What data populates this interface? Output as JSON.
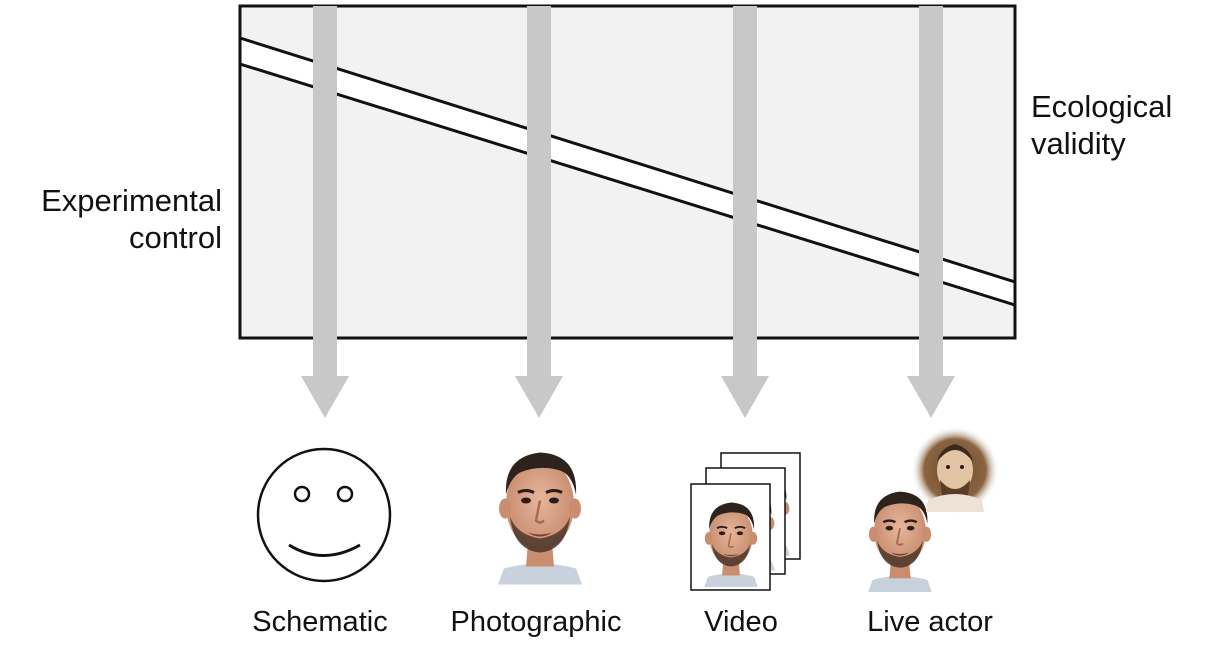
{
  "axis_labels": {
    "left": [
      "Experimental",
      "control"
    ],
    "right": [
      "Ecological",
      "validity"
    ]
  },
  "stimuli": [
    {
      "label": "Schematic",
      "icon": "smiley-face-icon"
    },
    {
      "label": "Photographic",
      "icon": "face-photo-icon"
    },
    {
      "label": "Video",
      "icon": "video-frames-icon"
    },
    {
      "label": "Live actor",
      "icon": "live-actor-icon"
    }
  ],
  "colors": {
    "panel_fill": "#f2f2f2",
    "arrow": "#c8c8c8",
    "outline": "#111111",
    "skin": "#d9a487",
    "hair": "#2e231c"
  }
}
